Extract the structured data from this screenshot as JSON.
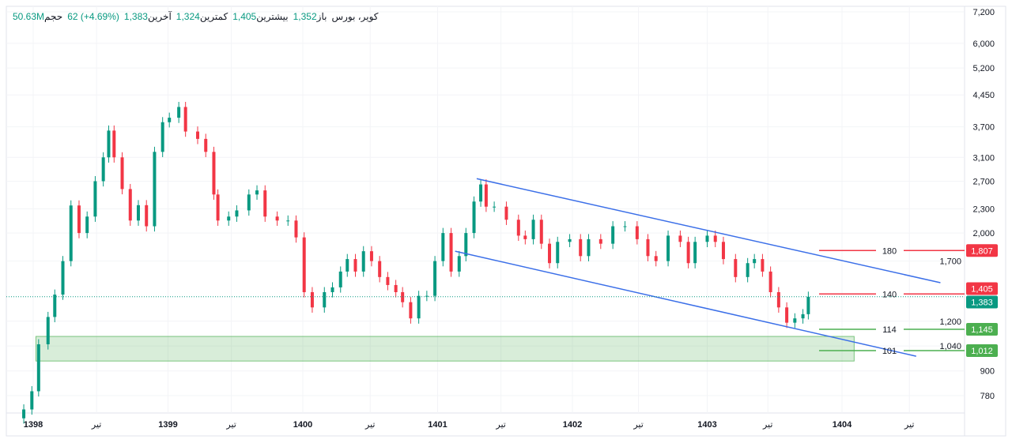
{
  "header": {
    "symbol": "کویر، بورس",
    "open_label": "باز",
    "open": "1,352",
    "high_label": "بیشترین",
    "high": "1,405",
    "low_label": "کمترین",
    "low": "1,324",
    "last_label": "آخرین",
    "last": "1,383",
    "change": "62 (+4.69%)",
    "volume_label": "حجم",
    "volume": "50.63M"
  },
  "chart_data": {
    "type": "candlestick",
    "y_scale": "log",
    "ylim": [
      700,
      7400
    ],
    "y_ticks": [
      "7,200",
      "6,000",
      "5,200",
      "4,450",
      "3,700",
      "3,100",
      "2,700",
      "2,300",
      "2,000",
      "1,700",
      "1,200",
      "1,040",
      "900",
      "780"
    ],
    "x_ticks": [
      {
        "t": 1398.0,
        "label": "1398",
        "bold": true
      },
      {
        "t": 1398.47,
        "label": "تیر",
        "bold": false
      },
      {
        "t": 1399.0,
        "label": "1399",
        "bold": true
      },
      {
        "t": 1399.47,
        "label": "تیر",
        "bold": false
      },
      {
        "t": 1400.0,
        "label": "1400",
        "bold": true
      },
      {
        "t": 1400.5,
        "label": "تیر",
        "bold": false
      },
      {
        "t": 1401.0,
        "label": "1401",
        "bold": true
      },
      {
        "t": 1401.47,
        "label": "تیر",
        "bold": false
      },
      {
        "t": 1402.0,
        "label": "1402",
        "bold": true
      },
      {
        "t": 1402.49,
        "label": "تیر",
        "bold": false
      },
      {
        "t": 1403.0,
        "label": "1403",
        "bold": true
      },
      {
        "t": 1403.45,
        "label": "تیر",
        "bold": false
      },
      {
        "t": 1404.0,
        "label": "1404",
        "bold": true
      },
      {
        "t": 1404.5,
        "label": "تیر",
        "bold": false
      }
    ],
    "closes": [
      [
        1397.93,
        720
      ],
      [
        1397.99,
        800
      ],
      [
        1398.04,
        1050
      ],
      [
        1398.11,
        1230
      ],
      [
        1398.16,
        1400
      ],
      [
        1398.22,
        1700
      ],
      [
        1398.28,
        2346
      ],
      [
        1398.34,
        2000
      ],
      [
        1398.4,
        2200
      ],
      [
        1398.46,
        2700
      ],
      [
        1398.52,
        3100
      ],
      [
        1398.56,
        3620
      ],
      [
        1398.6,
        3100
      ],
      [
        1398.66,
        2580
      ],
      [
        1398.72,
        2150
      ],
      [
        1398.78,
        2350
      ],
      [
        1398.84,
        2080
      ],
      [
        1398.9,
        3200
      ],
      [
        1398.96,
        3800
      ],
      [
        1399.01,
        3900
      ],
      [
        1399.08,
        4150
      ],
      [
        1399.13,
        3600
      ],
      [
        1399.22,
        3450
      ],
      [
        1399.28,
        3200
      ],
      [
        1399.34,
        2500
      ],
      [
        1399.37,
        2150
      ],
      [
        1399.45,
        2200
      ],
      [
        1399.51,
        2280
      ],
      [
        1399.6,
        2500
      ],
      [
        1399.66,
        2560
      ],
      [
        1399.72,
        2200
      ],
      [
        1399.81,
        2150
      ],
      [
        1399.89,
        2150
      ],
      [
        1399.95,
        1950
      ],
      [
        1400.01,
        1420
      ],
      [
        1400.07,
        1300
      ],
      [
        1400.16,
        1420
      ],
      [
        1400.22,
        1460
      ],
      [
        1400.28,
        1600
      ],
      [
        1400.33,
        1720
      ],
      [
        1400.39,
        1600
      ],
      [
        1400.45,
        1800
      ],
      [
        1400.51,
        1700
      ],
      [
        1400.57,
        1550
      ],
      [
        1400.63,
        1480
      ],
      [
        1400.69,
        1420
      ],
      [
        1400.74,
        1340
      ],
      [
        1400.8,
        1220
      ],
      [
        1400.86,
        1390
      ],
      [
        1400.92,
        1390
      ],
      [
        1400.98,
        1700
      ],
      [
        1401.04,
        2000
      ],
      [
        1401.1,
        1600
      ],
      [
        1401.16,
        1750
      ],
      [
        1401.21,
        2000
      ],
      [
        1401.27,
        2400
      ],
      [
        1401.32,
        2650
      ],
      [
        1401.36,
        2330
      ],
      [
        1401.42,
        2330
      ],
      [
        1401.51,
        2160
      ],
      [
        1401.6,
        1970
      ],
      [
        1401.65,
        1930
      ],
      [
        1401.71,
        2160
      ],
      [
        1401.77,
        1880
      ],
      [
        1401.83,
        1680
      ],
      [
        1401.89,
        1900
      ],
      [
        1401.98,
        1930
      ],
      [
        1402.06,
        1750
      ],
      [
        1402.12,
        1930
      ],
      [
        1402.21,
        1880
      ],
      [
        1402.3,
        2080
      ],
      [
        1402.39,
        2080
      ],
      [
        1402.48,
        1930
      ],
      [
        1402.56,
        1750
      ],
      [
        1402.62,
        1700
      ],
      [
        1402.71,
        1970
      ],
      [
        1402.8,
        1900
      ],
      [
        1402.86,
        1680
      ],
      [
        1402.91,
        1900
      ],
      [
        1403.0,
        1970
      ],
      [
        1403.06,
        1900
      ],
      [
        1403.12,
        1720
      ],
      [
        1403.21,
        1550
      ],
      [
        1403.3,
        1680
      ],
      [
        1403.35,
        1720
      ],
      [
        1403.41,
        1600
      ],
      [
        1403.47,
        1420
      ],
      [
        1403.53,
        1300
      ],
      [
        1403.59,
        1190
      ],
      [
        1403.65,
        1220
      ],
      [
        1403.71,
        1250
      ],
      [
        1403.75,
        1383
      ]
    ],
    "trend_lines": [
      {
        "from": [
          1401.29,
          2740
        ],
        "to": [
          1404.73,
          1500
        ],
        "color": "#3b6fe8"
      },
      {
        "from": [
          1401.13,
          1800
        ],
        "to": [
          1404.55,
          980
        ],
        "color": "#3b6fe8"
      }
    ],
    "zone": {
      "t0": 1398.02,
      "t1": 1404.09,
      "low": 953,
      "high": 1099,
      "color": "#4caf50"
    },
    "levels": [
      {
        "label": "180",
        "price": 1807,
        "badge": "1,807",
        "color": "#f23645"
      },
      {
        "label": "140",
        "price": 1405,
        "badge": "1,405",
        "color": "#f23645"
      },
      {
        "label": "114",
        "price": 1145,
        "badge": "1,145",
        "color": "#4caf50"
      },
      {
        "label": "101",
        "price": 1012,
        "badge": "1,012",
        "color": "#4caf50"
      }
    ],
    "last_price": {
      "price": 1383,
      "badge": "1,383",
      "color": "#089981"
    },
    "up_color": "#089981",
    "down_color": "#f23645"
  }
}
